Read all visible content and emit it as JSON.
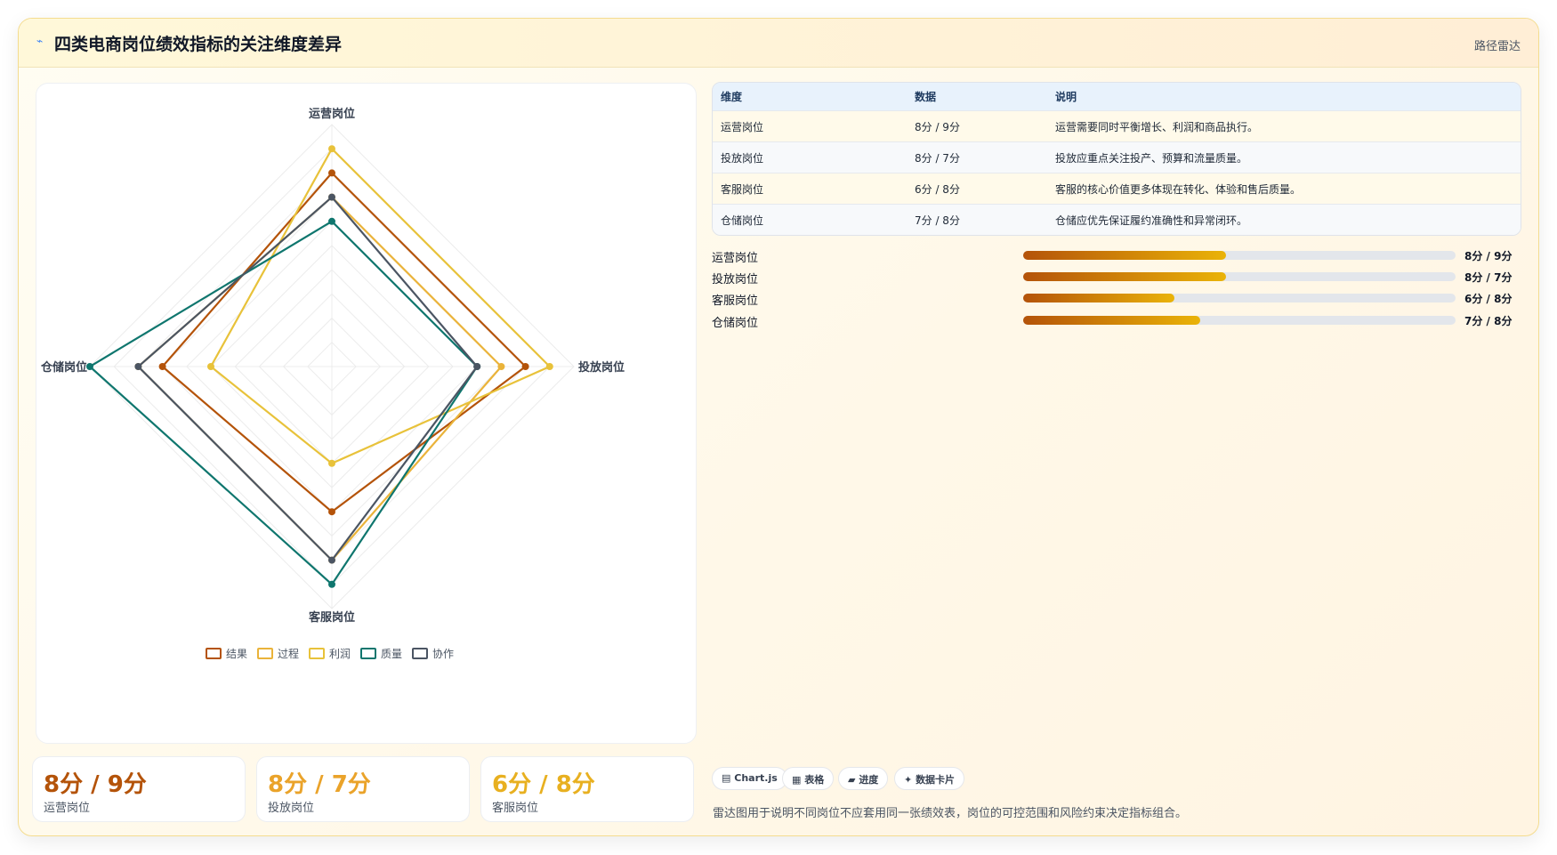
{
  "header": {
    "title": "四类电商岗位绩效指标的关注维度差异",
    "tag": "路径雷达"
  },
  "chart_data": {
    "type": "radar",
    "axes": [
      "运营岗位",
      "投放岗位",
      "客服岗位",
      "仓储岗位"
    ],
    "range": [
      0,
      10
    ],
    "series": [
      {
        "name": "结果",
        "color": "#b45309",
        "values": [
          8,
          8,
          6,
          7
        ]
      },
      {
        "name": "过程",
        "color": "#eab33a",
        "values": [
          7,
          7,
          8,
          8
        ]
      },
      {
        "name": "利润",
        "color": "#e8c23a",
        "values": [
          9,
          9,
          4,
          5
        ]
      },
      {
        "name": "质量",
        "color": "#0f766e",
        "values": [
          6,
          6,
          9,
          10
        ]
      },
      {
        "name": "协作",
        "color": "#4b5563",
        "values": [
          7,
          6,
          8,
          8
        ]
      }
    ],
    "legend_position": "bottom"
  },
  "stats": [
    {
      "value": "8分 / 9分",
      "label": "运营岗位",
      "color": "#b45309"
    },
    {
      "value": "8分 / 7分",
      "label": "投放岗位",
      "color": "#eaa32a"
    },
    {
      "value": "6分 / 8分",
      "label": "客服岗位",
      "color": "#e8b020"
    }
  ],
  "table": {
    "headers": [
      "维度",
      "数据",
      "说明"
    ],
    "rows": [
      [
        "运营岗位",
        "8分 / 9分",
        "运营需要同时平衡增长、利润和商品执行。"
      ],
      [
        "投放岗位",
        "8分 / 7分",
        "投放应重点关注投产、预算和流量质量。"
      ],
      [
        "客服岗位",
        "6分 / 8分",
        "客服的核心价值更多体现在转化、体验和售后质量。"
      ],
      [
        "仓储岗位",
        "7分 / 8分",
        "仓储应优先保证履约准确性和异常闭环。"
      ]
    ]
  },
  "progress": [
    {
      "label": "运营岗位",
      "value": "8分 / 9分",
      "fraction": 0.47
    },
    {
      "label": "投放岗位",
      "value": "8分 / 7分",
      "fraction": 0.47
    },
    {
      "label": "客服岗位",
      "value": "6分 / 8分",
      "fraction": 0.35
    },
    {
      "label": "仓储岗位",
      "value": "7分 / 8分",
      "fraction": 0.41
    }
  ],
  "chips": [
    {
      "icon": "▤",
      "label": "Chart.js"
    },
    {
      "icon": "▦",
      "label": "表格"
    },
    {
      "icon": "▰",
      "label": "进度"
    },
    {
      "icon": "✦",
      "label": "数据卡片"
    }
  ],
  "note": "雷达图用于说明不同岗位不应套用同一张绩效表，岗位的可控范围和风险约束决定指标组合。"
}
